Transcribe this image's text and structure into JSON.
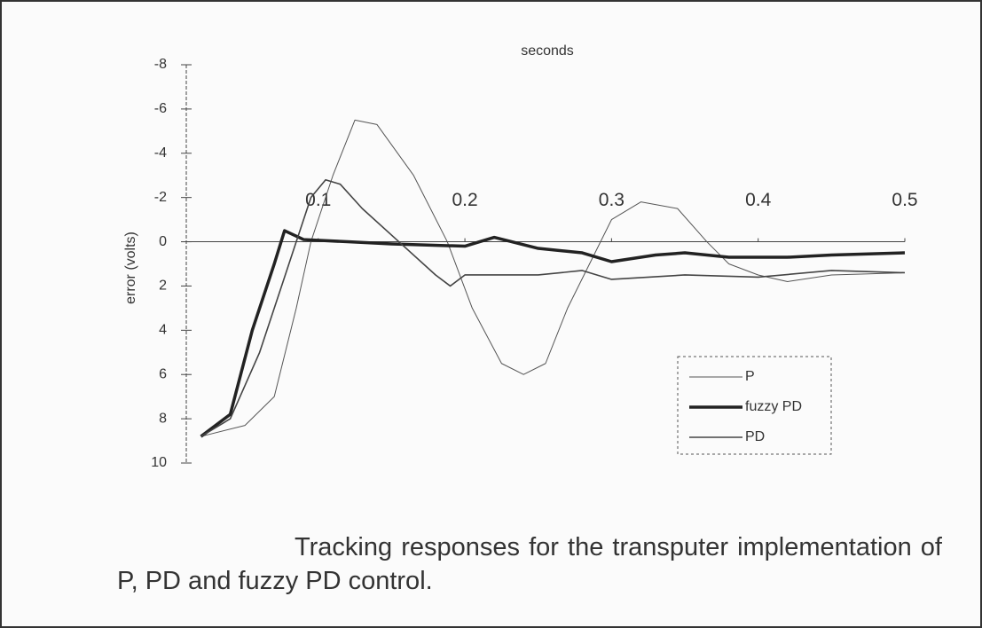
{
  "chart_data": {
    "type": "line",
    "x_label": "seconds",
    "y_label": "error (volts)",
    "caption": "Tracking responses for the transputer implementation of P, PD and fuzzy PD control.",
    "xlim": [
      0.01,
      0.5
    ],
    "xticks": [
      0.1,
      0.2,
      0.3,
      0.4,
      0.5
    ],
    "ylim": [
      -8,
      10
    ],
    "y_inverted": true,
    "yticks": [
      -8,
      -6,
      -4,
      -2,
      0,
      2,
      4,
      6,
      8,
      10
    ],
    "legend": "lower right",
    "series": [
      {
        "name": "P",
        "color": "#555555",
        "width": 1,
        "x": [
          0.02,
          0.05,
          0.07,
          0.085,
          0.095,
          0.11,
          0.125,
          0.14,
          0.165,
          0.188,
          0.205,
          0.225,
          0.24,
          0.255,
          0.27,
          0.285,
          0.3,
          0.32,
          0.345,
          0.365,
          0.38,
          0.4,
          0.42,
          0.45,
          0.5
        ],
        "values": [
          8.8,
          8.3,
          7,
          3,
          0,
          -3,
          -5.5,
          -5.3,
          -3,
          0,
          3,
          5.5,
          6,
          5.5,
          3,
          1,
          -1,
          -1.8,
          -1.5,
          0,
          1,
          1.5,
          1.8,
          1.5,
          1.4
        ]
      },
      {
        "name": "fuzzy PD",
        "color": "#222222",
        "width": 3.5,
        "x": [
          0.02,
          0.04,
          0.055,
          0.07,
          0.077,
          0.09,
          0.12,
          0.15,
          0.2,
          0.22,
          0.25,
          0.28,
          0.3,
          0.33,
          0.35,
          0.38,
          0.42,
          0.45,
          0.5
        ],
        "values": [
          8.8,
          7.8,
          4,
          1,
          -0.5,
          -0.1,
          0,
          0.1,
          0.2,
          -0.2,
          0.3,
          0.5,
          0.9,
          0.6,
          0.5,
          0.7,
          0.7,
          0.6,
          0.5
        ]
      },
      {
        "name": "PD",
        "color": "#444444",
        "width": 1.6,
        "x": [
          0.02,
          0.04,
          0.06,
          0.075,
          0.085,
          0.095,
          0.105,
          0.115,
          0.13,
          0.155,
          0.18,
          0.19,
          0.2,
          0.25,
          0.28,
          0.3,
          0.35,
          0.4,
          0.45,
          0.5
        ],
        "values": [
          8.8,
          8,
          5,
          2,
          0,
          -2,
          -2.8,
          -2.6,
          -1.5,
          0,
          1.5,
          2,
          1.5,
          1.5,
          1.3,
          1.7,
          1.5,
          1.6,
          1.3,
          1.4
        ]
      }
    ]
  }
}
